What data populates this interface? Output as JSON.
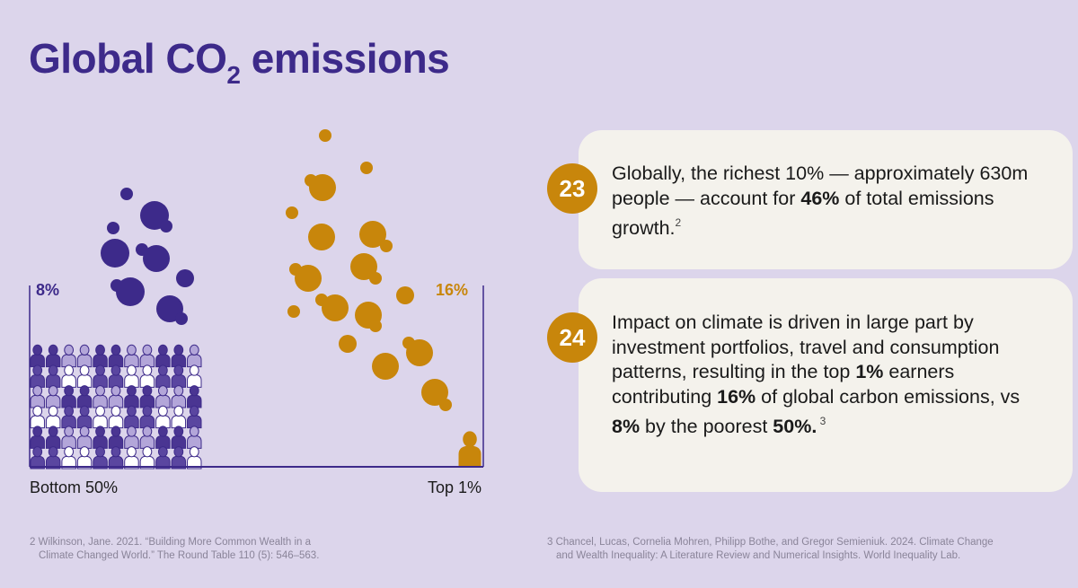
{
  "title": {
    "main": "Global CO",
    "sub": "2",
    "rest": " emissions"
  },
  "chart_data": {
    "type": "pictogram",
    "categories": [
      "Bottom 50%",
      "Top 1%"
    ],
    "values": [
      8,
      16
    ],
    "value_labels": [
      "8%",
      "16%"
    ],
    "colors": {
      "bottom": "#3d2a8a",
      "top": "#c8860b"
    }
  },
  "facts": [
    {
      "number": "23",
      "parts": [
        {
          "t": "Globally, the richest 10% — approximately 630m people — account for "
        },
        {
          "t": "46%",
          "b": true
        },
        {
          "t": " of total emissions growth."
        },
        {
          "t": "2",
          "sup": true
        }
      ]
    },
    {
      "number": "24",
      "parts": [
        {
          "t": "Impact on climate is driven in large part by investment portfolios, travel and consumption patterns, resulting in the top "
        },
        {
          "t": "1%",
          "b": true
        },
        {
          "t": " earners contributing "
        },
        {
          "t": "16%",
          "b": true
        },
        {
          "t": " of global carbon emissions, vs "
        },
        {
          "t": "8%",
          "b": true
        },
        {
          "t": " by the poorest "
        },
        {
          "t": "50%.",
          "b": true
        },
        {
          "t": " 3",
          "sup": true
        }
      ]
    }
  ],
  "footnotes": [
    {
      "line1": "2 Wilkinson, Jane. 2021. “Building More Common Wealth in a",
      "line2": "Climate Changed World.” The Round Table 110 (5): 546–563."
    },
    {
      "line1": "3 Chancel, Lucas, Cornelia Mohren, Philipp Bothe, and Gregor Semieniuk. 2024. Climate Change",
      "line2": "and Wealth Inequality: A Literature Review and Numerical Insights. World Inequality Lab."
    }
  ]
}
